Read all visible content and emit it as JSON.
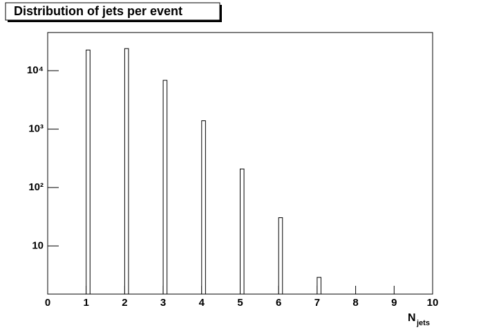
{
  "chart_data": {
    "type": "bar",
    "title": "Distribution of jets per event",
    "x_label": {
      "main": "N",
      "sub": "jets"
    },
    "x": [
      1,
      2,
      3,
      4,
      5,
      6,
      7
    ],
    "bar_width": 0.1,
    "values": [
      22600,
      23900,
      6840,
      1390,
      208,
      30.5,
      2.9
    ],
    "color": "#ffffff",
    "xlim": [
      0,
      10
    ],
    "xticks": [
      0,
      1,
      2,
      3,
      4,
      5,
      6,
      7,
      8,
      9,
      10
    ],
    "ylim": [
      1.5,
      45000
    ],
    "log_y": true,
    "yticks": [
      10,
      {
        "value": 100,
        "label": "10²"
      },
      {
        "value": 1000,
        "label": "10³"
      },
      {
        "value": 10000,
        "label": "10⁴"
      }
    ]
  }
}
